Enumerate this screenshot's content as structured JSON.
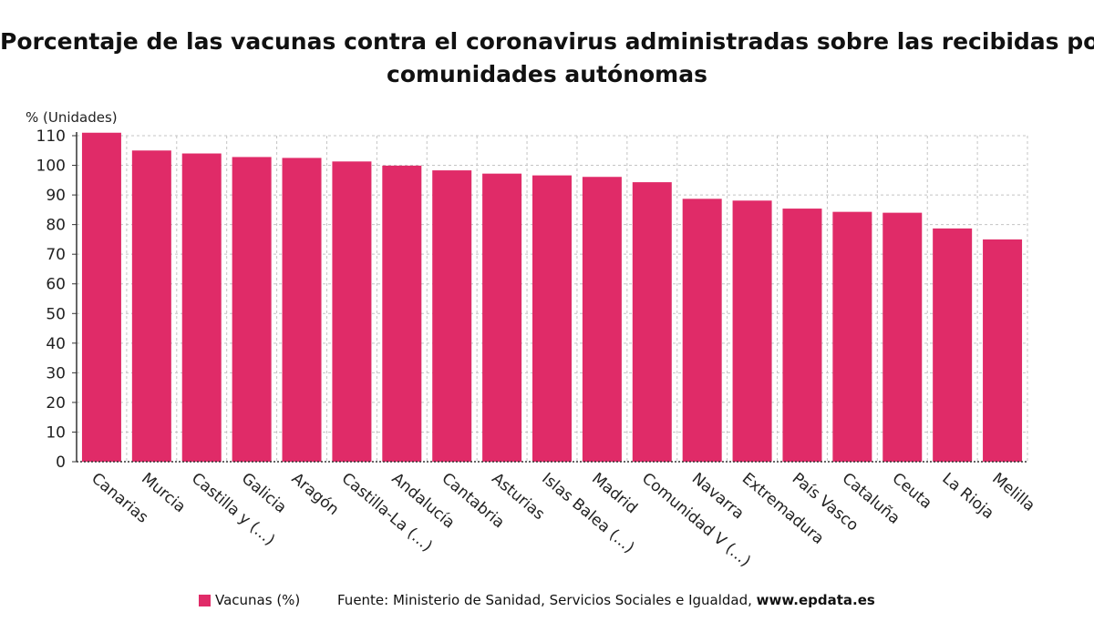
{
  "chart_data": {
    "type": "bar",
    "title_lines": [
      "Porcentaje de las vacunas contra el coronavirus administradas sobre las recibidas por",
      "comunidades autónomas"
    ],
    "ylabel": "% (Unidades)",
    "ylim": [
      0,
      110
    ],
    "yticks": [
      0,
      10,
      20,
      30,
      40,
      50,
      60,
      70,
      80,
      90,
      100,
      110
    ],
    "grid": true,
    "categories": [
      "Canarias",
      "Murcia",
      "Castilla y (...)",
      "Galicia",
      "Aragón",
      "Castilla-La (...)",
      "Andalucía",
      "Cantabria",
      "Asturias",
      "Islas Balea (...)",
      "Madrid",
      "Comunidad V (...)",
      "Navarra",
      "Extremadura",
      "País Vasco",
      "Cataluña",
      "Ceuta",
      "La Rioja",
      "Melilla"
    ],
    "series": [
      {
        "name": "Vacunas (%)",
        "color": "#e02b68",
        "values": [
          111,
          105,
          104,
          102.8,
          102.5,
          101.3,
          99.9,
          98.3,
          97.2,
          96.6,
          96.1,
          94.3,
          88.7,
          88.1,
          85.4,
          84.3,
          84.0,
          78.7,
          75.0
        ]
      }
    ]
  },
  "footer": {
    "legend_label": "Vacunas (%)",
    "source_prefix": "Fuente: Ministerio de Sanidad, Servicios Sociales e Igualdad,",
    "source_site": "www.epdata.es"
  }
}
